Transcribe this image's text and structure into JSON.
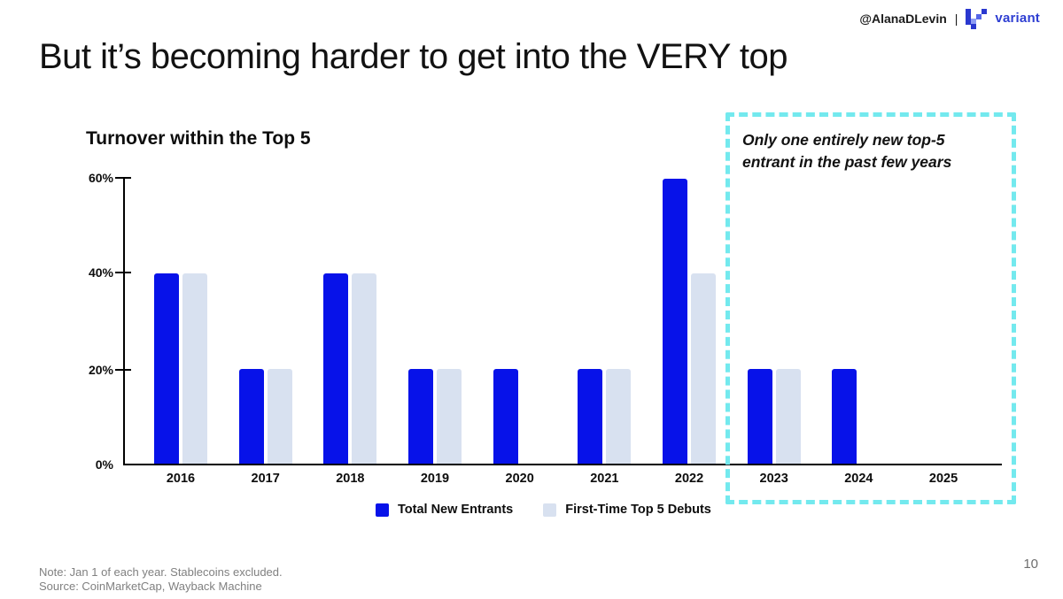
{
  "header": {
    "attribution": "@AlanaDLevin",
    "separator": "|",
    "brand": "variant",
    "brand_color": "#2e3ed2"
  },
  "slide": {
    "title": "But it’s becoming harder to get into the VERY top",
    "page_number": "10"
  },
  "chart_data": {
    "type": "bar",
    "title": "Turnover within the Top 5",
    "categories": [
      "2016",
      "2017",
      "2018",
      "2019",
      "2020",
      "2021",
      "2022",
      "2023",
      "2024",
      "2025"
    ],
    "series": [
      {
        "name": "Total New Entrants",
        "color": "#0712e9",
        "values": [
          40,
          20,
          40,
          20,
          20,
          20,
          60,
          20,
          20,
          0
        ]
      },
      {
        "name": "First-Time Top 5 Debuts",
        "color": "#d8e1f0",
        "values": [
          40,
          20,
          40,
          20,
          0,
          20,
          40,
          20,
          0,
          0
        ]
      }
    ],
    "yticks": [
      "0%",
      "20%",
      "40%",
      "60%"
    ],
    "ylim": [
      0,
      60
    ],
    "unit": "%",
    "grid": "off",
    "legend_position": "bottom"
  },
  "annotation": {
    "lines": [
      "Only one entirely new top-5",
      "entrant in the past few years"
    ],
    "border_color": "#73e9ee"
  },
  "footer": {
    "note": "Note: Jan 1 of each year. Stablecoins excluded.",
    "source": "Source: CoinMarketCap, Wayback Machine"
  }
}
